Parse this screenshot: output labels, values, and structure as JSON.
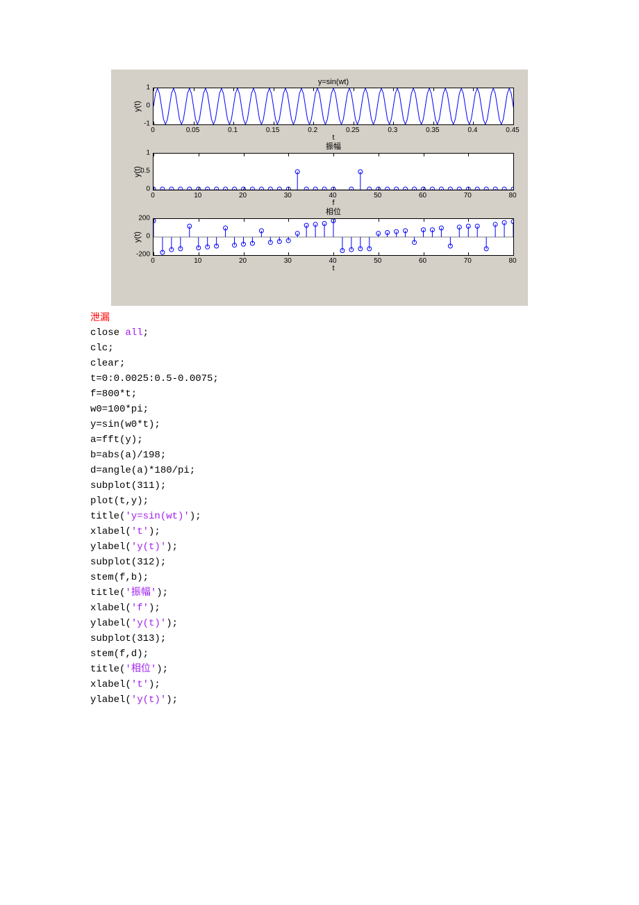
{
  "heading": "泄漏",
  "code_lines": [
    {
      "segments": [
        {
          "t": "close ",
          "c": ""
        },
        {
          "t": "all",
          "c": "str"
        },
        {
          "t": ";",
          "c": ""
        }
      ]
    },
    {
      "segments": [
        {
          "t": "clc;",
          "c": ""
        }
      ]
    },
    {
      "segments": [
        {
          "t": "clear;",
          "c": ""
        }
      ]
    },
    {
      "segments": [
        {
          "t": "t=0:0.0025:0.5-0.0075;",
          "c": ""
        }
      ]
    },
    {
      "segments": [
        {
          "t": "f=800*t;",
          "c": ""
        }
      ]
    },
    {
      "segments": [
        {
          "t": "w0=100*pi;",
          "c": ""
        }
      ]
    },
    {
      "segments": [
        {
          "t": "y=sin(w0*t);",
          "c": ""
        }
      ]
    },
    {
      "segments": [
        {
          "t": "a=fft(y);",
          "c": ""
        }
      ]
    },
    {
      "segments": [
        {
          "t": "b=abs(a)/198;",
          "c": ""
        }
      ]
    },
    {
      "segments": [
        {
          "t": "d=angle(a)*180/pi;",
          "c": ""
        }
      ]
    },
    {
      "segments": [
        {
          "t": "subplot(311);",
          "c": ""
        }
      ]
    },
    {
      "segments": [
        {
          "t": "plot(t,y);",
          "c": ""
        }
      ]
    },
    {
      "segments": [
        {
          "t": "title(",
          "c": ""
        },
        {
          "t": "'y=sin(wt)'",
          "c": "str"
        },
        {
          "t": ");",
          "c": ""
        }
      ]
    },
    {
      "segments": [
        {
          "t": "xlabel(",
          "c": ""
        },
        {
          "t": "'t'",
          "c": "str"
        },
        {
          "t": ");",
          "c": ""
        }
      ]
    },
    {
      "segments": [
        {
          "t": "ylabel(",
          "c": ""
        },
        {
          "t": "'y(t)'",
          "c": "str"
        },
        {
          "t": ");",
          "c": ""
        }
      ]
    },
    {
      "segments": [
        {
          "t": "subplot(312);",
          "c": ""
        }
      ]
    },
    {
      "segments": [
        {
          "t": "stem(f,b);",
          "c": ""
        }
      ]
    },
    {
      "segments": [
        {
          "t": "title(",
          "c": ""
        },
        {
          "t": "'",
          "c": "str"
        },
        {
          "t": "振幅",
          "c": "str cjk"
        },
        {
          "t": "'",
          "c": "str"
        },
        {
          "t": ");",
          "c": ""
        }
      ]
    },
    {
      "segments": [
        {
          "t": "xlabel(",
          "c": ""
        },
        {
          "t": "'f'",
          "c": "str"
        },
        {
          "t": ");",
          "c": ""
        }
      ]
    },
    {
      "segments": [
        {
          "t": "ylabel(",
          "c": ""
        },
        {
          "t": "'y(t)'",
          "c": "str"
        },
        {
          "t": ");",
          "c": ""
        }
      ]
    },
    {
      "segments": [
        {
          "t": "subplot(313);",
          "c": ""
        }
      ]
    },
    {
      "segments": [
        {
          "t": "stem(f,d);",
          "c": ""
        }
      ]
    },
    {
      "segments": [
        {
          "t": "title(",
          "c": ""
        },
        {
          "t": "'",
          "c": "str"
        },
        {
          "t": "相位",
          "c": "str cjk"
        },
        {
          "t": "'",
          "c": "str"
        },
        {
          "t": ");",
          "c": ""
        }
      ]
    },
    {
      "segments": [
        {
          "t": "xlabel(",
          "c": ""
        },
        {
          "t": "'t'",
          "c": "str"
        },
        {
          "t": ");",
          "c": ""
        }
      ]
    },
    {
      "segments": [
        {
          "t": "ylabel(",
          "c": ""
        },
        {
          "t": "'y(t)'",
          "c": "str"
        },
        {
          "t": ");",
          "c": ""
        }
      ]
    }
  ],
  "figure": {
    "background_color": "#d4d0c8",
    "plot_bg": "#ffffff",
    "line_color": "#0000ff",
    "axis_color": "#000000",
    "font": "Arial",
    "subplots": [
      {
        "type": "line",
        "title": "y=sin(wt)",
        "xlabel": "t",
        "ylabel": "y(t)",
        "xlim": [
          0,
          0.45
        ],
        "ylim": [
          -1,
          1
        ],
        "xticks": [
          0,
          0.05,
          0.1,
          0.15,
          0.2,
          0.25,
          0.3,
          0.35,
          0.4,
          0.45
        ],
        "yticks": [
          -1,
          0,
          1
        ],
        "line_width": 1,
        "sine_freq_hz": 50,
        "sine_amp": 1
      },
      {
        "type": "stem",
        "title": "振幅",
        "xlabel": "f",
        "ylabel": "y(t)",
        "xlim": [
          0,
          80
        ],
        "ylim": [
          0,
          1
        ],
        "xticks": [
          0,
          10,
          20,
          30,
          40,
          50,
          60,
          70,
          80
        ],
        "yticks": [
          0,
          0.5,
          1
        ],
        "stem_color": "#0000ff",
        "marker": "circle",
        "x": [
          0,
          2,
          4,
          6,
          8,
          10,
          12,
          14,
          16,
          18,
          20,
          22,
          24,
          26,
          28,
          30,
          32,
          34,
          36,
          38,
          40,
          44,
          46,
          48,
          50,
          52,
          54,
          56,
          58,
          60,
          62,
          64,
          66,
          68,
          70,
          72,
          74,
          76,
          78,
          80
        ],
        "y": [
          0.02,
          0.02,
          0.02,
          0.02,
          0.02,
          0.02,
          0.02,
          0.02,
          0.02,
          0.02,
          0.02,
          0.02,
          0.02,
          0.02,
          0.02,
          0.02,
          0.5,
          0.02,
          0.02,
          0.02,
          0.02,
          0.02,
          0.5,
          0.02,
          0.02,
          0.02,
          0.02,
          0.02,
          0.02,
          0.02,
          0.02,
          0.02,
          0.02,
          0.02,
          0.02,
          0.02,
          0.02,
          0.02,
          0.02,
          0.02
        ]
      },
      {
        "type": "stem",
        "title": "相位",
        "xlabel": "t",
        "ylabel": "y(t)",
        "xlim": [
          0,
          80
        ],
        "ylim": [
          -200,
          200
        ],
        "xticks": [
          0,
          10,
          20,
          30,
          40,
          50,
          60,
          70,
          80
        ],
        "yticks": [
          -200,
          0,
          200
        ],
        "stem_color": "#0000ff",
        "marker": "circle",
        "x": [
          0,
          2,
          4,
          6,
          8,
          10,
          12,
          14,
          16,
          18,
          20,
          22,
          24,
          26,
          28,
          30,
          32,
          34,
          36,
          38,
          40,
          42,
          44,
          46,
          48,
          50,
          52,
          54,
          56,
          58,
          60,
          62,
          64,
          66,
          68,
          70,
          72,
          74,
          76,
          78,
          80
        ],
        "y": [
          180,
          -170,
          -140,
          -130,
          120,
          -120,
          -110,
          -100,
          100,
          -90,
          -80,
          -70,
          70,
          -60,
          -50,
          -40,
          40,
          130,
          140,
          150,
          180,
          -150,
          -140,
          -130,
          -130,
          40,
          50,
          60,
          70,
          -60,
          80,
          80,
          100,
          -100,
          110,
          120,
          120,
          -130,
          140,
          160,
          170
        ]
      }
    ]
  }
}
